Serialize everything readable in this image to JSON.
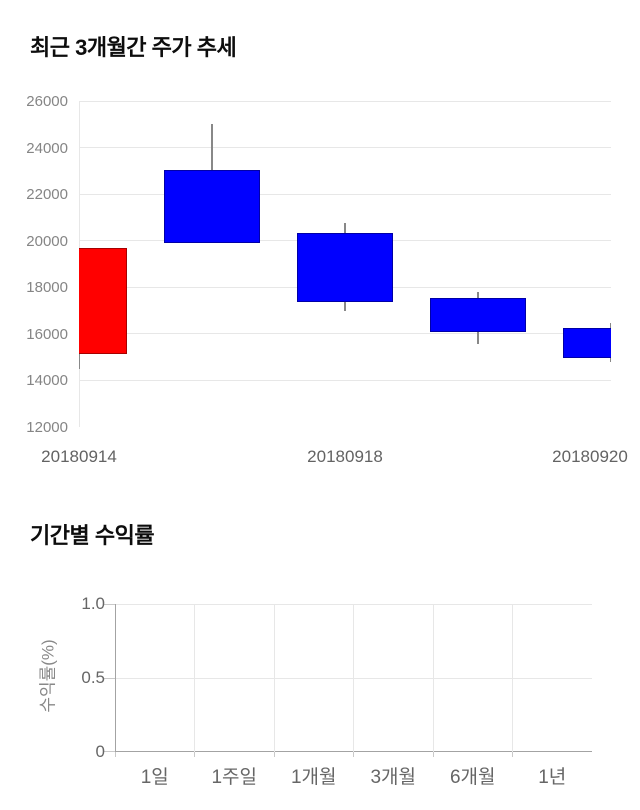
{
  "price_section": {
    "title": "최근 3개월간 주가 추세"
  },
  "returns_section": {
    "title": "기간별 수익률",
    "y_axis_title": "수익률(%)"
  },
  "colors": {
    "up_candle": "#ff0000",
    "down_candle": "#0000ff",
    "gridline": "#e7e7e7",
    "axis_line": "#a3a3a3",
    "wick": "#888888",
    "tick_label": "#858585",
    "title_text": "#0d0d0d"
  },
  "chart_data": [
    {
      "type": "candlestick",
      "title": "최근 3개월간 주가 추세",
      "ylim": [
        12000,
        26000
      ],
      "y_ticks": [
        26000,
        24000,
        22000,
        20000,
        18000,
        16000,
        14000,
        12000
      ],
      "grid": true,
      "up_color": "#ff0000",
      "down_color": "#0000ff",
      "x_tick_labels": [
        {
          "text": "20180914",
          "candle_index": 0
        },
        {
          "text": "20180918",
          "candle_index": 2
        },
        {
          "text": "20180920",
          "candle_index": 4
        }
      ],
      "candles": [
        {
          "date": "20180914",
          "direction": "up",
          "color": "#ff0000",
          "body_top": 19700,
          "body_bottom": 15150,
          "high": 19700,
          "low": 14500
        },
        {
          "direction": "down",
          "color": "#0000ff",
          "body_top": 23050,
          "body_bottom": 19900,
          "high": 25000,
          "low": 19900
        },
        {
          "date": "20180918",
          "direction": "down",
          "color": "#0000ff",
          "body_top": 20350,
          "body_bottom": 17350,
          "high": 20750,
          "low": 17000
        },
        {
          "direction": "down",
          "color": "#0000ff",
          "body_top": 17550,
          "body_bottom": 16100,
          "high": 17800,
          "low": 15550
        },
        {
          "date": "20180920",
          "direction": "down",
          "color": "#0000ff",
          "body_top": 16250,
          "body_bottom": 14950,
          "high": 16450,
          "low": 14800
        }
      ]
    },
    {
      "type": "bar",
      "title": "기간별 수익률",
      "ylabel": "수익률(%)",
      "categories": [
        "1일",
        "1주일",
        "1개월",
        "3개월",
        "6개월",
        "1년"
      ],
      "values": [
        null,
        null,
        null,
        null,
        null,
        null
      ],
      "y_ticks": [
        "1.0",
        "0.5",
        "0"
      ],
      "ylim": [
        0,
        1.0
      ],
      "grid": true,
      "legend": false
    }
  ]
}
